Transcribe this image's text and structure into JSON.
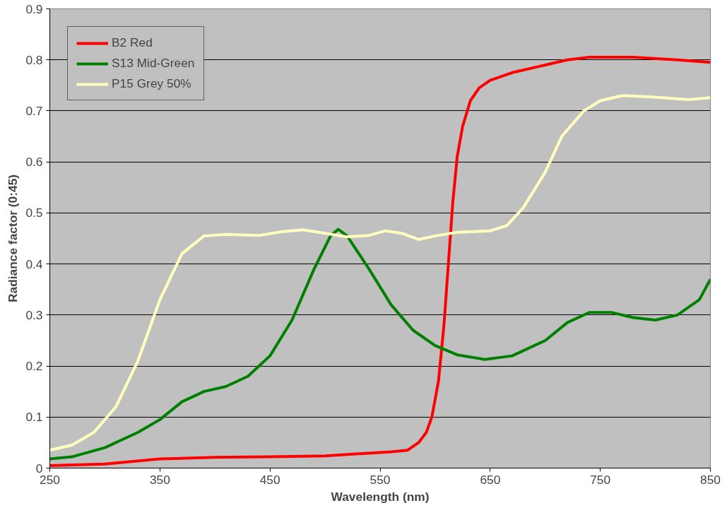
{
  "chart_data": {
    "type": "line",
    "xlabel": "Wavelength (nm)",
    "ylabel": "Radiance factor (0:45)",
    "xlim": [
      250,
      850
    ],
    "ylim": [
      0,
      0.9
    ],
    "xticks": [
      250,
      350,
      450,
      550,
      650,
      750,
      850
    ],
    "yticks": [
      0,
      0.1,
      0.2,
      0.3,
      0.4,
      0.5,
      0.6,
      0.7,
      0.8,
      0.9
    ],
    "grid": "y",
    "legend": "top left",
    "marker": "none",
    "line_style": "solid",
    "series": [
      {
        "name": "B2 Red",
        "color": "#ff0000",
        "x": [
          250,
          300,
          350,
          400,
          450,
          500,
          530,
          560,
          575,
          585,
          592,
          597,
          603,
          608,
          612,
          616,
          620,
          625,
          632,
          640,
          650,
          670,
          700,
          720,
          740,
          780,
          820,
          850
        ],
        "values": [
          0.005,
          0.008,
          0.018,
          0.021,
          0.022,
          0.024,
          0.028,
          0.032,
          0.035,
          0.05,
          0.07,
          0.1,
          0.17,
          0.28,
          0.4,
          0.52,
          0.61,
          0.67,
          0.72,
          0.745,
          0.76,
          0.775,
          0.79,
          0.8,
          0.805,
          0.805,
          0.8,
          0.795
        ]
      },
      {
        "name": "S13 Mid-Green",
        "color": "#008000",
        "x": [
          250,
          270,
          300,
          330,
          350,
          370,
          390,
          410,
          430,
          450,
          470,
          490,
          505,
          512,
          520,
          540,
          560,
          580,
          600,
          620,
          645,
          670,
          700,
          720,
          740,
          760,
          780,
          800,
          820,
          840,
          850
        ],
        "values": [
          0.018,
          0.022,
          0.04,
          0.07,
          0.095,
          0.13,
          0.15,
          0.16,
          0.18,
          0.22,
          0.29,
          0.39,
          0.455,
          0.468,
          0.455,
          0.39,
          0.32,
          0.27,
          0.24,
          0.222,
          0.213,
          0.22,
          0.25,
          0.285,
          0.305,
          0.305,
          0.295,
          0.29,
          0.3,
          0.33,
          0.37
        ]
      },
      {
        "name": "P15 Grey 50%",
        "color": "#ffffc0",
        "x": [
          250,
          270,
          290,
          310,
          330,
          350,
          370,
          390,
          410,
          440,
          460,
          480,
          500,
          520,
          540,
          555,
          570,
          585,
          600,
          620,
          650,
          665,
          680,
          700,
          715,
          735,
          750,
          770,
          800,
          830,
          850
        ],
        "values": [
          0.035,
          0.045,
          0.07,
          0.12,
          0.21,
          0.33,
          0.42,
          0.455,
          0.458,
          0.456,
          0.463,
          0.467,
          0.46,
          0.453,
          0.456,
          0.465,
          0.46,
          0.448,
          0.455,
          0.462,
          0.465,
          0.475,
          0.51,
          0.58,
          0.65,
          0.7,
          0.72,
          0.73,
          0.727,
          0.722,
          0.726
        ]
      }
    ]
  }
}
